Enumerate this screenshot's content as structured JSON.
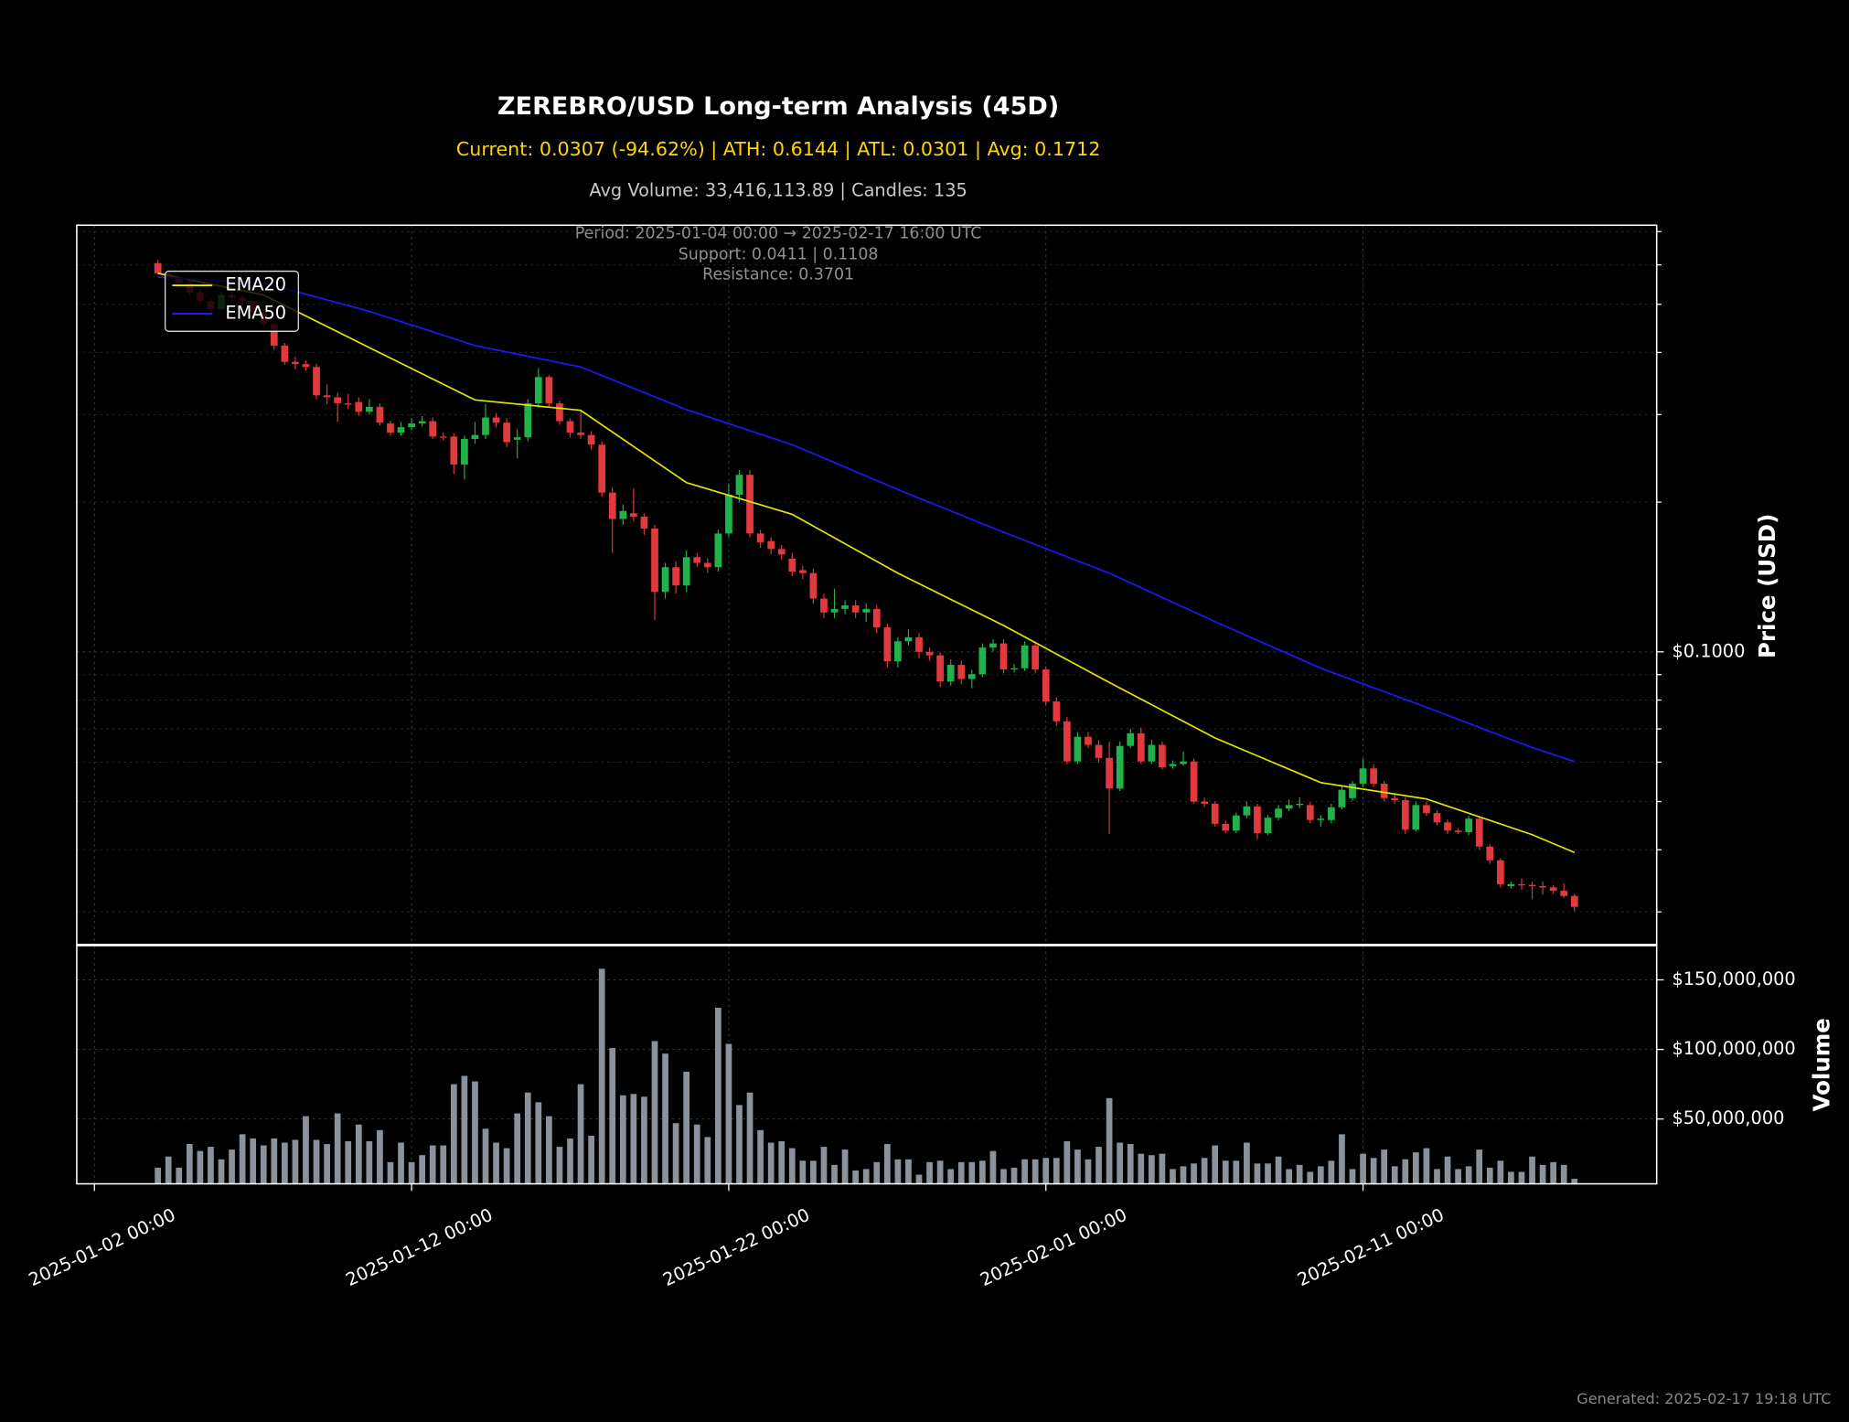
{
  "chart_data": {
    "type": "candlestick",
    "title": "ZEREBRO/USD Long-term Analysis (45D)",
    "subtitle": "Current: 0.0307 (-94.62%) | ATH: 0.6144 | ATL: 0.0301 | Avg: 0.1712",
    "info": "Avg Volume: 33,416,113.89 | Candles: 135",
    "annotations": [
      "Period: 2025-01-04 00:00 → 2025-02-17 16:00 UTC",
      "Support: 0.0411 | 0.1108",
      "Resistance: 0.3701"
    ],
    "footer": "Generated: 2025-02-17 19:18 UTC",
    "y_label": "Price (USD)",
    "volume_label": "Volume",
    "up_color": "#22b24c",
    "down_color": "#e0393e",
    "log_scale": true,
    "grid": true,
    "legend": "upper left",
    "ylim": [
      0.0258,
      0.721
    ],
    "yticks": [
      {
        "value": 0.1,
        "label": "$0.1000"
      }
    ],
    "yticks_minor": [
      0.03,
      0.04,
      0.05,
      0.06,
      0.07,
      0.08,
      0.09,
      0.2,
      0.3,
      0.4,
      0.5,
      0.6,
      0.7
    ],
    "xlim": [
      "2025-01-01 10:37",
      "2025-02-20 06:14"
    ],
    "xticks": [
      "2025-01-02 00:00",
      "2025-01-12 00:00",
      "2025-01-22 00:00",
      "2025-02-01 00:00",
      "2025-02-11 00:00"
    ],
    "x": [
      "2025-01-04 00:00",
      "2025-01-04 08:00",
      "2025-01-04 16:00",
      "2025-01-05 00:00",
      "2025-01-05 08:00",
      "2025-01-05 16:00",
      "2025-01-06 00:00",
      "2025-01-06 08:00",
      "2025-01-06 16:00",
      "2025-01-07 00:00",
      "2025-01-07 08:00",
      "2025-01-07 16:00",
      "2025-01-08 00:00",
      "2025-01-08 08:00",
      "2025-01-08 16:00",
      "2025-01-09 00:00",
      "2025-01-09 08:00",
      "2025-01-09 16:00",
      "2025-01-10 00:00",
      "2025-01-10 08:00",
      "2025-01-10 16:00",
      "2025-01-11 00:00",
      "2025-01-11 08:00",
      "2025-01-11 16:00",
      "2025-01-12 00:00",
      "2025-01-12 08:00",
      "2025-01-12 16:00",
      "2025-01-13 00:00",
      "2025-01-13 08:00",
      "2025-01-13 16:00",
      "2025-01-14 00:00",
      "2025-01-14 08:00",
      "2025-01-14 16:00",
      "2025-01-15 00:00",
      "2025-01-15 08:00",
      "2025-01-15 16:00",
      "2025-01-16 00:00",
      "2025-01-16 08:00",
      "2025-01-16 16:00",
      "2025-01-17 00:00",
      "2025-01-17 08:00",
      "2025-01-17 16:00",
      "2025-01-18 00:00",
      "2025-01-18 08:00",
      "2025-01-18 16:00",
      "2025-01-19 00:00",
      "2025-01-19 08:00",
      "2025-01-19 16:00",
      "2025-01-20 00:00",
      "2025-01-20 08:00",
      "2025-01-20 16:00",
      "2025-01-21 00:00",
      "2025-01-21 08:00",
      "2025-01-21 16:00",
      "2025-01-22 00:00",
      "2025-01-22 08:00",
      "2025-01-22 16:00",
      "2025-01-23 00:00",
      "2025-01-23 08:00",
      "2025-01-23 16:00",
      "2025-01-24 00:00",
      "2025-01-24 08:00",
      "2025-01-24 16:00",
      "2025-01-25 00:00",
      "2025-01-25 08:00",
      "2025-01-25 16:00",
      "2025-01-26 00:00",
      "2025-01-26 08:00",
      "2025-01-26 16:00",
      "2025-01-27 00:00",
      "2025-01-27 08:00",
      "2025-01-27 16:00",
      "2025-01-28 00:00",
      "2025-01-28 08:00",
      "2025-01-28 16:00",
      "2025-01-29 00:00",
      "2025-01-29 08:00",
      "2025-01-29 16:00",
      "2025-01-30 00:00",
      "2025-01-30 08:00",
      "2025-01-30 16:00",
      "2025-01-31 00:00",
      "2025-01-31 08:00",
      "2025-01-31 16:00",
      "2025-02-01 00:00",
      "2025-02-01 08:00",
      "2025-02-01 16:00",
      "2025-02-02 00:00",
      "2025-02-02 08:00",
      "2025-02-02 16:00",
      "2025-02-03 00:00",
      "2025-02-03 08:00",
      "2025-02-03 16:00",
      "2025-02-04 00:00",
      "2025-02-04 08:00",
      "2025-02-04 16:00",
      "2025-02-05 00:00",
      "2025-02-05 08:00",
      "2025-02-05 16:00",
      "2025-02-06 00:00",
      "2025-02-06 08:00",
      "2025-02-06 16:00",
      "2025-02-07 00:00",
      "2025-02-07 08:00",
      "2025-02-07 16:00",
      "2025-02-08 00:00",
      "2025-02-08 08:00",
      "2025-02-08 16:00",
      "2025-02-09 00:00",
      "2025-02-09 08:00",
      "2025-02-09 16:00",
      "2025-02-10 00:00",
      "2025-02-10 08:00",
      "2025-02-10 16:00",
      "2025-02-11 00:00",
      "2025-02-11 08:00",
      "2025-02-11 16:00",
      "2025-02-12 00:00",
      "2025-02-12 08:00",
      "2025-02-12 16:00",
      "2025-02-13 00:00",
      "2025-02-13 08:00",
      "2025-02-13 16:00",
      "2025-02-14 00:00",
      "2025-02-14 08:00",
      "2025-02-14 16:00",
      "2025-02-15 00:00",
      "2025-02-15 08:00",
      "2025-02-15 16:00",
      "2025-02-16 00:00",
      "2025-02-16 08:00",
      "2025-02-16 16:00",
      "2025-02-17 00:00",
      "2025-02-17 08:00",
      "2025-02-17 16:00"
    ],
    "open": [
      0.605,
      0.577,
      0.564,
      0.552,
      0.528,
      0.508,
      0.489,
      0.522,
      0.515,
      0.508,
      0.481,
      0.456,
      0.413,
      0.383,
      0.379,
      0.374,
      0.328,
      0.325,
      0.316,
      0.318,
      0.304,
      0.311,
      0.288,
      0.276,
      0.283,
      0.288,
      0.291,
      0.271,
      0.271,
      0.238,
      0.268,
      0.273,
      0.296,
      0.289,
      0.267,
      0.27,
      0.316,
      0.357,
      0.316,
      0.291,
      0.276,
      0.273,
      0.261,
      0.209,
      0.185,
      0.19,
      0.187,
      0.177,
      0.132,
      0.148,
      0.136,
      0.155,
      0.151,
      0.148,
      0.173,
      0.207,
      0.227,
      0.173,
      0.167,
      0.161,
      0.154,
      0.146,
      0.144,
      0.128,
      0.12,
      0.122,
      0.124,
      0.12,
      0.122,
      0.112,
      0.0957,
      0.105,
      0.107,
      0.1,
      0.0984,
      0.0872,
      0.0942,
      0.0882,
      0.0902,
      0.102,
      0.104,
      0.0922,
      0.0927,
      0.103,
      0.0922,
      0.0795,
      0.0725,
      0.0602,
      0.0675,
      0.065,
      0.0612,
      0.0531,
      0.0647,
      0.0686,
      0.0602,
      0.065,
      0.0589,
      0.0595,
      0.0602,
      0.05,
      0.0495,
      0.0451,
      0.0437,
      0.0469,
      0.0489,
      0.0432,
      0.0464,
      0.0484,
      0.0492,
      0.0492,
      0.0459,
      0.0459,
      0.0487,
      0.0508,
      0.0543,
      0.0583,
      0.0543,
      0.0508,
      0.0503,
      0.0439,
      0.0492,
      0.0474,
      0.0454,
      0.0437,
      0.0434,
      0.0462,
      0.0406,
      0.0381,
      0.0338,
      0.0341,
      0.034,
      0.0338,
      0.0336,
      0.0331,
      0.0323
    ],
    "high": [
      0.614,
      0.585,
      0.57,
      0.56,
      0.535,
      0.515,
      0.53,
      0.53,
      0.522,
      0.512,
      0.486,
      0.46,
      0.418,
      0.392,
      0.385,
      0.38,
      0.345,
      0.332,
      0.33,
      0.325,
      0.322,
      0.316,
      0.292,
      0.29,
      0.295,
      0.298,
      0.296,
      0.276,
      0.275,
      0.272,
      0.29,
      0.315,
      0.302,
      0.295,
      0.28,
      0.322,
      0.372,
      0.36,
      0.32,
      0.295,
      0.305,
      0.278,
      0.265,
      0.214,
      0.198,
      0.213,
      0.19,
      0.18,
      0.151,
      0.152,
      0.16,
      0.158,
      0.154,
      0.176,
      0.218,
      0.232,
      0.232,
      0.176,
      0.17,
      0.164,
      0.158,
      0.149,
      0.147,
      0.131,
      0.134,
      0.127,
      0.127,
      0.125,
      0.124,
      0.114,
      0.107,
      0.111,
      0.109,
      0.102,
      0.0998,
      0.0965,
      0.096,
      0.092,
      0.104,
      0.106,
      0.106,
      0.0945,
      0.105,
      0.105,
      0.0935,
      0.081,
      0.074,
      0.069,
      0.069,
      0.0665,
      0.066,
      0.066,
      0.07,
      0.0705,
      0.0665,
      0.066,
      0.0605,
      0.063,
      0.061,
      0.051,
      0.05,
      0.0458,
      0.0475,
      0.05,
      0.0495,
      0.047,
      0.0492,
      0.0505,
      0.051,
      0.0498,
      0.047,
      0.0495,
      0.054,
      0.055,
      0.061,
      0.0595,
      0.055,
      0.0515,
      0.051,
      0.05,
      0.05,
      0.048,
      0.046,
      0.0442,
      0.0468,
      0.0466,
      0.041,
      0.0385,
      0.0345,
      0.035,
      0.0345,
      0.0345,
      0.034,
      0.0342,
      0.0326
    ],
    "low": [
      0.575,
      0.558,
      0.545,
      0.522,
      0.5,
      0.482,
      0.485,
      0.508,
      0.5,
      0.475,
      0.45,
      0.405,
      0.378,
      0.37,
      0.368,
      0.322,
      0.315,
      0.29,
      0.308,
      0.298,
      0.3,
      0.285,
      0.272,
      0.272,
      0.279,
      0.284,
      0.268,
      0.266,
      0.228,
      0.222,
      0.262,
      0.268,
      0.283,
      0.258,
      0.245,
      0.265,
      0.31,
      0.31,
      0.286,
      0.27,
      0.268,
      0.255,
      0.205,
      0.158,
      0.18,
      0.183,
      0.172,
      0.116,
      0.128,
      0.131,
      0.132,
      0.148,
      0.144,
      0.145,
      0.17,
      0.2,
      0.17,
      0.162,
      0.157,
      0.153,
      0.142,
      0.14,
      0.125,
      0.117,
      0.117,
      0.119,
      0.117,
      0.115,
      0.109,
      0.093,
      0.093,
      0.103,
      0.097,
      0.096,
      0.085,
      0.0855,
      0.086,
      0.0845,
      0.089,
      0.1,
      0.0905,
      0.091,
      0.0915,
      0.0905,
      0.078,
      0.071,
      0.0595,
      0.0595,
      0.064,
      0.06,
      0.043,
      0.0525,
      0.064,
      0.0595,
      0.0595,
      0.058,
      0.0582,
      0.059,
      0.0495,
      0.0488,
      0.0445,
      0.0432,
      0.0432,
      0.0462,
      0.042,
      0.0428,
      0.0458,
      0.0478,
      0.0485,
      0.0452,
      0.0445,
      0.0452,
      0.0482,
      0.0502,
      0.0535,
      0.0535,
      0.05,
      0.0495,
      0.043,
      0.0435,
      0.0468,
      0.0448,
      0.043,
      0.043,
      0.0428,
      0.04,
      0.0375,
      0.0336,
      0.0334,
      0.0332,
      0.0318,
      0.0325,
      0.0326,
      0.032,
      0.0301
    ],
    "close": [
      0.577,
      0.564,
      0.552,
      0.528,
      0.508,
      0.489,
      0.522,
      0.515,
      0.508,
      0.481,
      0.456,
      0.413,
      0.383,
      0.379,
      0.374,
      0.328,
      0.325,
      0.316,
      0.315,
      0.304,
      0.311,
      0.289,
      0.276,
      0.283,
      0.288,
      0.291,
      0.271,
      0.27,
      0.238,
      0.268,
      0.273,
      0.296,
      0.289,
      0.264,
      0.27,
      0.316,
      0.357,
      0.316,
      0.291,
      0.276,
      0.273,
      0.261,
      0.209,
      0.185,
      0.192,
      0.187,
      0.177,
      0.132,
      0.148,
      0.136,
      0.155,
      0.151,
      0.148,
      0.173,
      0.207,
      0.227,
      0.173,
      0.166,
      0.161,
      0.157,
      0.145,
      0.144,
      0.128,
      0.12,
      0.122,
      0.124,
      0.12,
      0.122,
      0.112,
      0.0957,
      0.105,
      0.107,
      0.1,
      0.0984,
      0.0872,
      0.0942,
      0.0882,
      0.0902,
      0.102,
      0.104,
      0.0922,
      0.0927,
      0.103,
      0.0922,
      0.0795,
      0.0725,
      0.0602,
      0.0675,
      0.065,
      0.0612,
      0.0531,
      0.0647,
      0.0686,
      0.0602,
      0.065,
      0.0586,
      0.0595,
      0.0602,
      0.05,
      0.0495,
      0.0451,
      0.0437,
      0.0469,
      0.0489,
      0.0432,
      0.0464,
      0.0484,
      0.0492,
      0.0495,
      0.0459,
      0.0462,
      0.0487,
      0.0528,
      0.0543,
      0.0583,
      0.0543,
      0.0508,
      0.0503,
      0.0439,
      0.0492,
      0.0474,
      0.0454,
      0.0437,
      0.0434,
      0.0462,
      0.0406,
      0.0381,
      0.0341,
      0.0341,
      0.034,
      0.0338,
      0.0336,
      0.0331,
      0.0323,
      0.0307
    ],
    "ema": [
      {
        "name": "EMA20",
        "color": "#e6e600",
        "x": [
          "2025-01-04 00:00",
          "2025-01-07 08:00",
          "2025-01-10 16:00",
          "2025-01-14 00:00",
          "2025-01-17 08:00",
          "2025-01-20 16:00",
          "2025-01-24 00:00",
          "2025-01-27 08:00",
          "2025-01-30 16:00",
          "2025-02-03 00:00",
          "2025-02-06 08:00",
          "2025-02-09 16:00",
          "2025-02-13 00:00",
          "2025-02-16 08:00",
          "2025-02-17 16:00"
        ],
        "values": [
          0.577,
          0.522,
          0.409,
          0.321,
          0.306,
          0.219,
          0.189,
          0.144,
          0.113,
          0.0868,
          0.0671,
          0.0546,
          0.0506,
          0.0429,
          0.0395
        ]
      },
      {
        "name": "EMA50",
        "color": "#1a1aff",
        "x": [
          "2025-01-04 00:00",
          "2025-01-07 08:00",
          "2025-01-10 16:00",
          "2025-01-14 00:00",
          "2025-01-17 08:00",
          "2025-01-20 16:00",
          "2025-01-24 00:00",
          "2025-01-27 08:00",
          "2025-01-30 16:00",
          "2025-02-03 00:00",
          "2025-02-06 08:00",
          "2025-02-09 16:00",
          "2025-02-13 00:00",
          "2025-02-16 08:00",
          "2025-02-17 16:00"
        ],
        "values": [
          0.567,
          0.552,
          0.484,
          0.413,
          0.374,
          0.307,
          0.261,
          0.212,
          0.174,
          0.144,
          0.115,
          0.0927,
          0.0774,
          0.0642,
          0.0602
        ]
      }
    ],
    "volume": {
      "color": "#8a939c",
      "ylim": [
        3400000,
        174600000
      ],
      "yticks": [
        {
          "value": 50000000,
          "label": "$50,000,000"
        },
        {
          "value": 100000000,
          "label": "$100,000,000"
        },
        {
          "value": 150000000,
          "label": "$150,000,000"
        }
      ],
      "values": [
        15000000,
        23000000,
        15000000,
        32000000,
        27000000,
        30000000,
        21000000,
        28000000,
        39000000,
        36000000,
        31000000,
        36000000,
        33000000,
        35000000,
        52000000,
        35000000,
        32000000,
        54000000,
        34000000,
        46000000,
        34000000,
        42000000,
        19000000,
        33000000,
        19000000,
        24000000,
        31000000,
        31000000,
        75000000,
        81000000,
        77000000,
        43000000,
        33000000,
        29000000,
        54000000,
        69000000,
        62000000,
        52000000,
        30000000,
        36000000,
        75000000,
        38000000,
        158000000,
        101000000,
        67000000,
        68000000,
        66000000,
        106000000,
        97000000,
        47000000,
        84000000,
        46000000,
        37000000,
        130000000,
        104000000,
        60000000,
        69000000,
        42000000,
        33000000,
        34000000,
        29000000,
        20000000,
        20000000,
        30000000,
        17000000,
        28000000,
        13000000,
        14000000,
        19000000,
        32000000,
        21000000,
        21000000,
        10000000,
        19000000,
        20000000,
        14000000,
        19000000,
        19000000,
        20000000,
        27000000,
        14000000,
        15000000,
        21000000,
        21000000,
        22000000,
        22000000,
        34000000,
        28000000,
        21000000,
        30000000,
        65000000,
        33000000,
        32000000,
        25000000,
        24000000,
        25000000,
        14000000,
        16000000,
        18000000,
        22000000,
        31000000,
        20000000,
        20000000,
        33000000,
        18000000,
        18000000,
        23000000,
        14000000,
        17000000,
        12000000,
        16000000,
        20000000,
        39000000,
        14000000,
        25000000,
        22000000,
        28000000,
        16000000,
        21000000,
        26000000,
        29000000,
        14000000,
        23000000,
        14000000,
        16000000,
        28000000,
        15000000,
        20000000,
        12000000,
        12000000,
        23000000,
        17000000,
        19000000,
        17000000,
        7000000
      ]
    }
  }
}
